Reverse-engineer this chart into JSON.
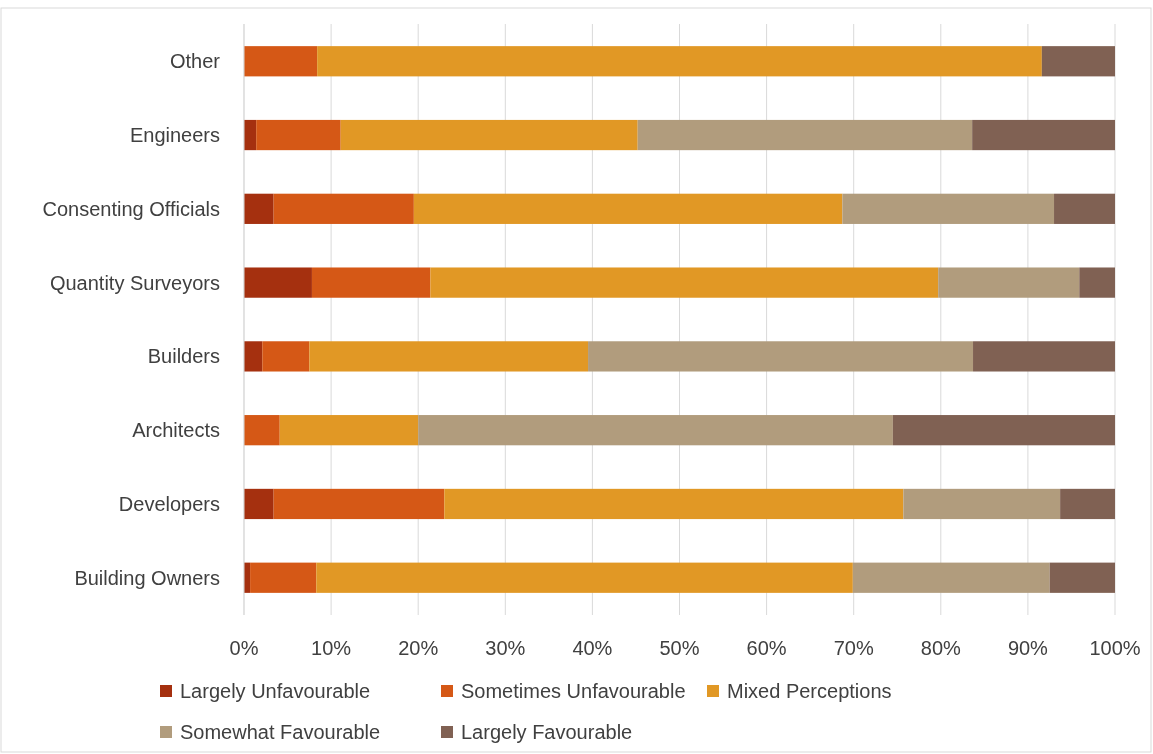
{
  "chart_data": {
    "type": "bar",
    "orientation": "horizontal",
    "stacked": true,
    "categories": [
      "Other",
      "Engineers",
      "Consenting Officials",
      "Quantity Surveyors",
      "Builders",
      "Architects",
      "Developers",
      "Building Owners"
    ],
    "series": [
      {
        "name": "Largely Unfavourable",
        "color": "#a5300f",
        "values": [
          0,
          1.4,
          3.4,
          7.8,
          2.1,
          0,
          3.4,
          0.7
        ]
      },
      {
        "name": "Sometimes Unfavourable",
        "color": "#d55816",
        "values": [
          8.4,
          9.7,
          16.1,
          13.6,
          5.4,
          4.1,
          19.6,
          7.6
        ]
      },
      {
        "name": "Mixed Perceptions",
        "color": "#e19825",
        "values": [
          83.2,
          34.1,
          49.2,
          58.3,
          32.0,
          15.9,
          52.7,
          61.6
        ]
      },
      {
        "name": "Somewhat Favourable",
        "color": "#b19c7d",
        "values": [
          0,
          38.4,
          24.3,
          16.2,
          44.2,
          54.5,
          18.0,
          22.6
        ]
      },
      {
        "name": "Largely Favourable",
        "color": "#806153",
        "values": [
          8.4,
          16.4,
          7.0,
          4.1,
          16.3,
          25.5,
          6.3,
          7.5
        ]
      }
    ],
    "xlim": [
      0,
      100
    ],
    "xticks": [
      {
        "value": 0,
        "label": "0%"
      },
      {
        "value": 10,
        "label": "10%"
      },
      {
        "value": 20,
        "label": "20%"
      },
      {
        "value": 30,
        "label": "30%"
      },
      {
        "value": 40,
        "label": "40%"
      },
      {
        "value": 50,
        "label": "50%"
      },
      {
        "value": 60,
        "label": "60%"
      },
      {
        "value": 70,
        "label": "70%"
      },
      {
        "value": 80,
        "label": "80%"
      },
      {
        "value": 90,
        "label": "90%"
      },
      {
        "value": 100,
        "label": "100%"
      }
    ],
    "grid": "x",
    "legend": "bottom"
  }
}
